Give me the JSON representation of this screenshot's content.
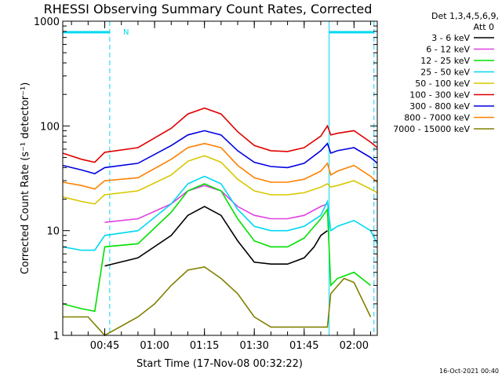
{
  "chart_data": {
    "type": "line",
    "title": "RHESSI Observing Summary Count Rates, Corrected",
    "xlabel": "Start Time (17-Nov-08 00:32:22)",
    "ylabel": "Corrected Count Rate (s⁻¹ detector⁻¹)",
    "x_scale": "time",
    "y_scale": "log",
    "xlim": [
      "00:32:22",
      "02:07:00"
    ],
    "ylim": [
      1,
      1000
    ],
    "x_ticks": [
      "00:45",
      "01:00",
      "01:15",
      "01:30",
      "01:45",
      "02:00"
    ],
    "y_ticks": [
      {
        "value": 1,
        "label": "1"
      },
      {
        "value": 10,
        "label": "10"
      },
      {
        "value": 100,
        "label": "100"
      },
      {
        "value": 1000,
        "label": "1000"
      }
    ],
    "grid": false,
    "legend_position": "right",
    "legend_header": [
      "Det 1,3,4,5,6,9,",
      "Att 0"
    ],
    "annotations": {
      "night_marker": "N",
      "timestamp": "16-Oct-2021 00:40"
    },
    "series": [
      {
        "name": "3 - 6 keV",
        "color": "#000000",
        "points": [
          [
            "00:45:00",
            4.6
          ],
          [
            "00:55:00",
            5.5
          ],
          [
            "01:05:00",
            9
          ],
          [
            "01:10:00",
            14
          ],
          [
            "01:15:00",
            17
          ],
          [
            "01:20:00",
            14
          ],
          [
            "01:25:00",
            8
          ],
          [
            "01:30:00",
            5
          ],
          [
            "01:35:00",
            4.8
          ],
          [
            "01:40:00",
            4.8
          ],
          [
            "01:45:00",
            5.5
          ],
          [
            "01:48:00",
            7
          ],
          [
            "01:50:00",
            9
          ],
          [
            "01:52:00",
            10
          ]
        ]
      },
      {
        "name": "6 - 12 keV",
        "color": "#e040e0",
        "points": [
          [
            "00:45:00",
            12
          ],
          [
            "00:55:00",
            13
          ],
          [
            "01:05:00",
            18
          ],
          [
            "01:10:00",
            24
          ],
          [
            "01:15:00",
            27
          ],
          [
            "01:20:00",
            24
          ],
          [
            "01:25:00",
            17
          ],
          [
            "01:30:00",
            14
          ],
          [
            "01:35:00",
            13
          ],
          [
            "01:40:00",
            13
          ],
          [
            "01:45:00",
            14
          ],
          [
            "01:50:00",
            17
          ],
          [
            "01:52:00",
            18
          ]
        ]
      },
      {
        "name": "12 - 25 keV",
        "color": "#00e000",
        "points": [
          [
            "00:32:22",
            2
          ],
          [
            "00:38:00",
            1.8
          ],
          [
            "00:42:00",
            1.7
          ],
          [
            "00:45:00",
            7
          ],
          [
            "00:55:00",
            7.5
          ],
          [
            "01:05:00",
            15
          ],
          [
            "01:10:00",
            24
          ],
          [
            "01:15:00",
            28
          ],
          [
            "01:20:00",
            24
          ],
          [
            "01:25:00",
            13
          ],
          [
            "01:30:00",
            8
          ],
          [
            "01:35:00",
            7
          ],
          [
            "01:40:00",
            7
          ],
          [
            "01:45:00",
            8.5
          ],
          [
            "01:50:00",
            13
          ],
          [
            "01:52:00",
            16
          ],
          [
            "01:53:00",
            3
          ],
          [
            "01:55:00",
            3.5
          ],
          [
            "02:00:00",
            4
          ],
          [
            "02:05:00",
            3
          ]
        ]
      },
      {
        "name": "25 - 50 keV",
        "color": "#00d8f0",
        "points": [
          [
            "00:32:22",
            7
          ],
          [
            "00:38:00",
            6.5
          ],
          [
            "00:42:00",
            6.5
          ],
          [
            "00:45:00",
            9
          ],
          [
            "00:55:00",
            10
          ],
          [
            "01:05:00",
            18
          ],
          [
            "01:10:00",
            28
          ],
          [
            "01:15:00",
            33
          ],
          [
            "01:20:00",
            28
          ],
          [
            "01:25:00",
            16
          ],
          [
            "01:30:00",
            11
          ],
          [
            "01:35:00",
            10
          ],
          [
            "01:40:00",
            10
          ],
          [
            "01:45:00",
            11
          ],
          [
            "01:50:00",
            14
          ],
          [
            "01:52:00",
            19
          ],
          [
            "01:53:00",
            10
          ],
          [
            "01:55:00",
            11
          ],
          [
            "02:00:00",
            12.5
          ],
          [
            "02:05:00",
            10
          ],
          [
            "02:07:00",
            7.5
          ]
        ]
      },
      {
        "name": "50 - 100 keV",
        "color": "#d8c800",
        "points": [
          [
            "00:32:22",
            21
          ],
          [
            "00:38:00",
            19
          ],
          [
            "00:42:00",
            18
          ],
          [
            "00:45:00",
            22
          ],
          [
            "00:55:00",
            24
          ],
          [
            "01:05:00",
            34
          ],
          [
            "01:10:00",
            46
          ],
          [
            "01:15:00",
            52
          ],
          [
            "01:20:00",
            45
          ],
          [
            "01:25:00",
            31
          ],
          [
            "01:30:00",
            24
          ],
          [
            "01:35:00",
            22
          ],
          [
            "01:40:00",
            22
          ],
          [
            "01:45:00",
            23
          ],
          [
            "01:50:00",
            26
          ],
          [
            "01:52:00",
            28
          ],
          [
            "01:53:00",
            26
          ],
          [
            "01:55:00",
            27
          ],
          [
            "02:00:00",
            30
          ],
          [
            "02:05:00",
            25
          ],
          [
            "02:07:00",
            23
          ]
        ]
      },
      {
        "name": "100 - 300 keV",
        "color": "#e00000",
        "points": [
          [
            "00:32:22",
            55
          ],
          [
            "00:38:00",
            48
          ],
          [
            "00:42:00",
            45
          ],
          [
            "00:45:00",
            56
          ],
          [
            "00:55:00",
            62
          ],
          [
            "01:05:00",
            95
          ],
          [
            "01:10:00",
            130
          ],
          [
            "01:15:00",
            148
          ],
          [
            "01:20:00",
            130
          ],
          [
            "01:25:00",
            88
          ],
          [
            "01:30:00",
            65
          ],
          [
            "01:35:00",
            58
          ],
          [
            "01:40:00",
            57
          ],
          [
            "01:45:00",
            62
          ],
          [
            "01:50:00",
            80
          ],
          [
            "01:52:00",
            100
          ],
          [
            "01:53:00",
            82
          ],
          [
            "01:55:00",
            85
          ],
          [
            "02:00:00",
            90
          ],
          [
            "02:05:00",
            70
          ],
          [
            "02:07:00",
            62
          ]
        ]
      },
      {
        "name": "300 - 800 keV",
        "color": "#0000e0",
        "points": [
          [
            "00:32:22",
            42
          ],
          [
            "00:38:00",
            38
          ],
          [
            "00:42:00",
            35
          ],
          [
            "00:45:00",
            40
          ],
          [
            "00:55:00",
            44
          ],
          [
            "01:05:00",
            65
          ],
          [
            "01:10:00",
            82
          ],
          [
            "01:15:00",
            90
          ],
          [
            "01:20:00",
            82
          ],
          [
            "01:25:00",
            58
          ],
          [
            "01:30:00",
            45
          ],
          [
            "01:35:00",
            41
          ],
          [
            "01:40:00",
            40
          ],
          [
            "01:45:00",
            44
          ],
          [
            "01:50:00",
            58
          ],
          [
            "01:52:00",
            68
          ],
          [
            "01:53:00",
            55
          ],
          [
            "01:55:00",
            58
          ],
          [
            "02:00:00",
            62
          ],
          [
            "02:05:00",
            50
          ],
          [
            "02:07:00",
            44
          ]
        ]
      },
      {
        "name": "800 - 7000 keV",
        "color": "#ff8000",
        "points": [
          [
            "00:32:22",
            29
          ],
          [
            "00:38:00",
            27
          ],
          [
            "00:42:00",
            25
          ],
          [
            "00:45:00",
            30
          ],
          [
            "00:55:00",
            32
          ],
          [
            "01:05:00",
            48
          ],
          [
            "01:10:00",
            62
          ],
          [
            "01:15:00",
            68
          ],
          [
            "01:20:00",
            62
          ],
          [
            "01:25:00",
            42
          ],
          [
            "01:30:00",
            32
          ],
          [
            "01:35:00",
            29
          ],
          [
            "01:40:00",
            29
          ],
          [
            "01:45:00",
            31
          ],
          [
            "01:50:00",
            37
          ],
          [
            "01:52:00",
            44
          ],
          [
            "01:53:00",
            34
          ],
          [
            "01:55:00",
            37
          ],
          [
            "02:00:00",
            42
          ],
          [
            "02:05:00",
            33
          ],
          [
            "02:07:00",
            29
          ]
        ]
      },
      {
        "name": "7000 - 15000 keV",
        "color": "#808000",
        "points": [
          [
            "00:32:22",
            1.5
          ],
          [
            "00:40:00",
            1.5
          ],
          [
            "00:45:00",
            1
          ],
          [
            "00:55:00",
            1.5
          ],
          [
            "01:00:00",
            2
          ],
          [
            "01:05:00",
            3
          ],
          [
            "01:10:00",
            4.2
          ],
          [
            "01:15:00",
            4.5
          ],
          [
            "01:20:00",
            3.5
          ],
          [
            "01:25:00",
            2.5
          ],
          [
            "01:30:00",
            1.5
          ],
          [
            "01:35:00",
            1.2
          ],
          [
            "01:40:00",
            1.2
          ],
          [
            "01:45:00",
            1.2
          ],
          [
            "01:52:00",
            1.2
          ],
          [
            "01:53:00",
            2.5
          ],
          [
            "01:57:00",
            3.5
          ],
          [
            "02:00:00",
            3.2
          ],
          [
            "02:05:00",
            1.5
          ]
        ]
      }
    ],
    "status_bars": [
      {
        "name": "N",
        "color": "#00d8f0",
        "start": "00:32:22",
        "end": "00:46:30",
        "boundary_solid": "00:32:22",
        "boundary_dashed": "00:46:30"
      },
      {
        "name": "",
        "color": "#00d8f0",
        "start": "01:52:30",
        "end": "02:06:00",
        "boundary_solid": "01:52:30",
        "boundary_dashed": "02:06:00"
      }
    ]
  }
}
